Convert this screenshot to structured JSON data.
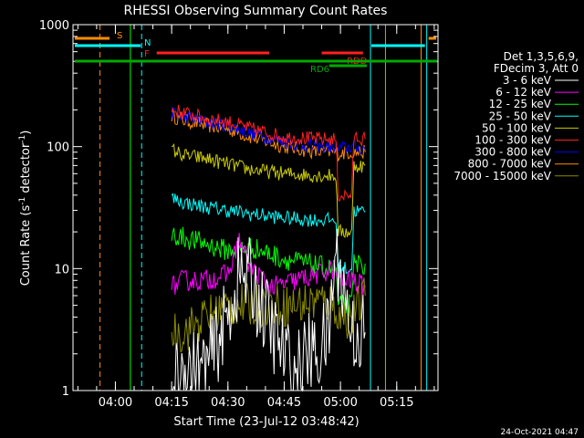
{
  "chart_data": {
    "type": "line",
    "title": "RHESSI Observing Summary Count Rates",
    "xlabel": "Start Time (23-Jul-12 03:48:42)",
    "ylabel_prefix": "Count Rate (s",
    "ylabel_sup": "-1",
    "ylabel_mid": " detector",
    "ylabel_suffix": ")",
    "xlim": [
      "03:48:42",
      "05:26:00"
    ],
    "ylim": [
      1,
      1000
    ],
    "yscale": "log",
    "x_ticks": [
      "04:00",
      "04:15",
      "04:30",
      "04:45",
      "05:00",
      "05:15"
    ],
    "y_ticks": [
      "1",
      "10",
      "100",
      "1000"
    ],
    "legend": {
      "placement": "right",
      "header_line1": "Det 1,3,5,6,9,",
      "header_line2": "FDecim 3, Att 0",
      "entries": [
        {
          "label": "3 - 6 keV",
          "color": "#ffffff"
        },
        {
          "label": "6 - 12 keV",
          "color": "#ff00ff"
        },
        {
          "label": "12 - 25 keV",
          "color": "#00ff00"
        },
        {
          "label": "25 - 50 keV",
          "color": "#00ffff"
        },
        {
          "label": "50 - 100 keV",
          "color": "#cccc00"
        },
        {
          "label": "100 - 300 keV",
          "color": "#ff2020"
        },
        {
          "label": "300 - 800 keV",
          "color": "#0000ff"
        },
        {
          "label": "800 - 7000 keV",
          "color": "#ff8c00"
        },
        {
          "label": "7000 - 15000 keV",
          "color": "#8b8b00"
        }
      ]
    },
    "flags": [
      {
        "label": "S",
        "color": "#ff8c00"
      },
      {
        "label": "N",
        "color": "#00ffff"
      },
      {
        "label": "F",
        "color": "#ff2020"
      },
      {
        "label": "RDD",
        "color": "#ff2020"
      },
      {
        "label": "RD6",
        "color": "#00aa00"
      }
    ],
    "series": [
      {
        "color": "#ff8c00",
        "values": [
          [
            4.25,
            180
          ],
          [
            4.3,
            165
          ],
          [
            4.4,
            150
          ],
          [
            4.5,
            140
          ],
          [
            4.6,
            120
          ],
          [
            4.75,
            100
          ],
          [
            4.9,
            90
          ],
          [
            4.98,
            90
          ],
          [
            4.99,
            88
          ],
          [
            5.05,
            90
          ],
          [
            5.11,
            90
          ]
        ]
      },
      {
        "color": "#0000ff",
        "values": [
          [
            4.25,
            190
          ],
          [
            4.3,
            175
          ],
          [
            4.4,
            160
          ],
          [
            4.5,
            150
          ],
          [
            4.6,
            130
          ],
          [
            4.75,
            110
          ],
          [
            4.9,
            100
          ],
          [
            4.98,
            100
          ],
          [
            4.99,
            95
          ],
          [
            5.05,
            100
          ],
          [
            5.11,
            95
          ]
        ]
      },
      {
        "color": "#ff2020",
        "values": [
          [
            4.25,
            200
          ],
          [
            4.3,
            190
          ],
          [
            4.4,
            170
          ],
          [
            4.5,
            160
          ],
          [
            4.6,
            140
          ],
          [
            4.75,
            120
          ],
          [
            4.9,
            115
          ],
          [
            4.98,
            115
          ],
          [
            4.99,
            40
          ],
          [
            5.05,
            40
          ],
          [
            5.06,
            120
          ],
          [
            5.11,
            115
          ]
        ]
      },
      {
        "color": "#cccc00",
        "values": [
          [
            4.25,
            95
          ],
          [
            4.3,
            85
          ],
          [
            4.4,
            80
          ],
          [
            4.5,
            72
          ],
          [
            4.6,
            65
          ],
          [
            4.75,
            60
          ],
          [
            4.9,
            58
          ],
          [
            4.98,
            58
          ],
          [
            4.99,
            20
          ],
          [
            5.05,
            20
          ],
          [
            5.06,
            70
          ],
          [
            5.11,
            70
          ]
        ]
      },
      {
        "color": "#00ffff",
        "values": [
          [
            4.25,
            38
          ],
          [
            4.3,
            35
          ],
          [
            4.4,
            32
          ],
          [
            4.5,
            30
          ],
          [
            4.6,
            28
          ],
          [
            4.75,
            26
          ],
          [
            4.9,
            25
          ],
          [
            4.98,
            25
          ],
          [
            4.99,
            10
          ],
          [
            5.05,
            10
          ],
          [
            5.06,
            30
          ],
          [
            5.11,
            29
          ]
        ]
      },
      {
        "color": "#00ff00",
        "values": [
          [
            4.25,
            19
          ],
          [
            4.3,
            18
          ],
          [
            4.4,
            16
          ],
          [
            4.5,
            14
          ],
          [
            4.6,
            15
          ],
          [
            4.75,
            12
          ],
          [
            4.85,
            11
          ],
          [
            4.95,
            10
          ],
          [
            4.98,
            10
          ],
          [
            4.99,
            5
          ],
          [
            5.05,
            5
          ],
          [
            5.06,
            11
          ],
          [
            5.11,
            11
          ]
        ]
      },
      {
        "color": "#ff00ff",
        "values": [
          [
            4.25,
            7
          ],
          [
            4.3,
            8
          ],
          [
            4.4,
            8
          ],
          [
            4.5,
            9
          ],
          [
            4.55,
            17
          ],
          [
            4.6,
            10
          ],
          [
            4.7,
            7
          ],
          [
            4.8,
            8
          ],
          [
            4.9,
            9
          ],
          [
            4.97,
            10
          ],
          [
            4.99,
            8
          ],
          [
            5.05,
            8
          ],
          [
            5.11,
            7
          ]
        ]
      },
      {
        "color": "#8b8b00",
        "values": [
          [
            4.25,
            3
          ],
          [
            4.3,
            3
          ],
          [
            4.4,
            4
          ],
          [
            4.5,
            5
          ],
          [
            4.6,
            5
          ],
          [
            4.7,
            5
          ],
          [
            4.8,
            5
          ],
          [
            4.9,
            5.5
          ],
          [
            4.98,
            5
          ],
          [
            4.99,
            4
          ],
          [
            5.05,
            4
          ],
          [
            5.11,
            6
          ]
        ]
      },
      {
        "color": "#ffffff",
        "values": [
          [
            4.25,
            1
          ],
          [
            4.3,
            1.5
          ],
          [
            4.4,
            1.5
          ],
          [
            4.5,
            4
          ],
          [
            4.55,
            9
          ],
          [
            4.6,
            8
          ],
          [
            4.7,
            3
          ],
          [
            4.8,
            1.3
          ],
          [
            4.85,
            2
          ],
          [
            4.9,
            2
          ],
          [
            4.95,
            3
          ],
          [
            4.97,
            10
          ],
          [
            4.99,
            12
          ],
          [
            5.05,
            3
          ],
          [
            5.11,
            3
          ]
        ]
      }
    ]
  },
  "footer": {
    "timestamp": "24-Oct-2021 04:47"
  }
}
